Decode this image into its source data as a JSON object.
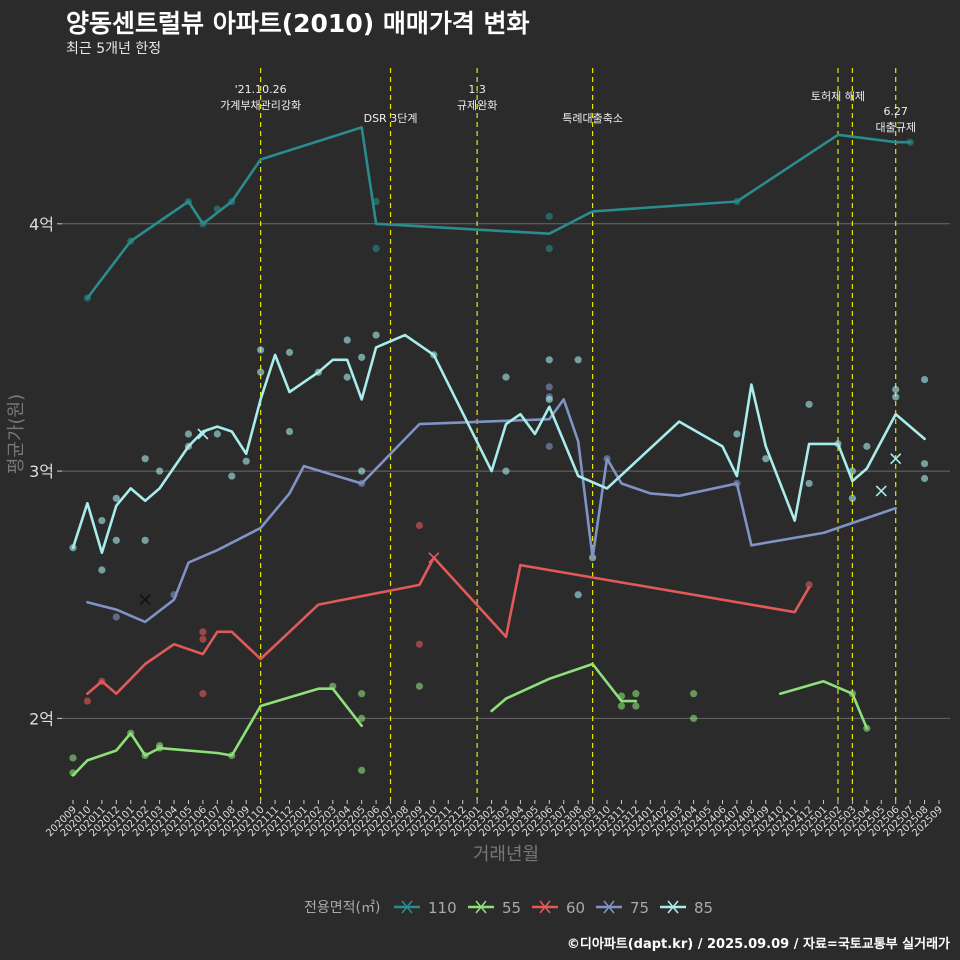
{
  "title": "양동센트럴뷰 아파트(2010) 매매가격 변화",
  "subtitle": "최근 5개년 한정",
  "footer": "©디아파트(dapt.kr) / 2025.09.09 / 자료=국토교통부 실거래가",
  "colors": {
    "background": "#2b2b2b",
    "grid": "#6a6a6a",
    "event_line": "#e6e600",
    "series": {
      "110": "#2a8c8c",
      "55": "#8ee07a",
      "60": "#e05a5a",
      "75": "#7f93c4",
      "85": "#a8ecec"
    }
  },
  "chart_data": {
    "type": "line",
    "ylabel": "평균가(원)",
    "xlabel": "거래년월",
    "ytick_labels": [
      "2억",
      "3억",
      "4억"
    ],
    "yticks": [
      20000,
      30000,
      40000
    ],
    "ylim": [
      16700,
      46300
    ],
    "x_ticks": [
      "202009",
      "202010",
      "202011",
      "202012",
      "202101",
      "202102",
      "202103",
      "202104",
      "202105",
      "202106",
      "202107",
      "202108",
      "202109",
      "202110",
      "202111",
      "202112",
      "202201",
      "202202",
      "202203",
      "202204",
      "202205",
      "202206",
      "202207",
      "202208",
      "202209",
      "202210",
      "202211",
      "202212",
      "202301",
      "202302",
      "202303",
      "202304",
      "202305",
      "202306",
      "202307",
      "202308",
      "202309",
      "202310",
      "202311",
      "202312",
      "202401",
      "202402",
      "202403",
      "202404",
      "202405",
      "202406",
      "202407",
      "202408",
      "202409",
      "202410",
      "202411",
      "202412",
      "202501",
      "202502",
      "202503",
      "202504",
      "202505",
      "202506",
      "202507",
      "202508",
      "202509"
    ],
    "legend_title": "전용면적(㎡)",
    "legend_position": "bottom",
    "events": [
      {
        "month": "202110",
        "label": "'21.10.26\n가계부채관리강화",
        "level": 0
      },
      {
        "month": "202207",
        "label": "DSR 3단계",
        "level": 2
      },
      {
        "month": "202301",
        "label": "1.3\n규제완화",
        "level": 0
      },
      {
        "month": "202309",
        "label": "특례대출축소",
        "level": 2
      },
      {
        "month": "202502",
        "label": "토허제 해제",
        "level": 1
      },
      {
        "month": "202503",
        "label": "",
        "level": 1
      },
      {
        "month": "202506",
        "label": "6.27\n대출규제",
        "level": 3
      }
    ],
    "series": [
      {
        "name": "110",
        "line": [
          [
            1,
            37000
          ],
          [
            4,
            39300
          ],
          [
            8,
            40900
          ],
          [
            9,
            40000
          ],
          [
            11,
            40900
          ],
          [
            13,
            42600
          ],
          [
            20,
            43900
          ],
          [
            21,
            40000
          ],
          [
            33,
            39600
          ],
          [
            36,
            40500
          ],
          [
            46,
            40900
          ],
          [
            53,
            43600
          ],
          [
            57,
            43300
          ],
          [
            58,
            43300
          ]
        ],
        "points": [
          [
            1,
            37000
          ],
          [
            4,
            39300
          ],
          [
            8,
            40900
          ],
          [
            9,
            40000
          ],
          [
            10,
            40600
          ],
          [
            11,
            40900
          ],
          [
            21,
            40900
          ],
          [
            21,
            39000
          ],
          [
            33,
            40300
          ],
          [
            33,
            39000
          ],
          [
            46,
            40900
          ],
          [
            58,
            43300
          ]
        ],
        "marker": null
      },
      {
        "name": "55",
        "line": [
          [
            0,
            17700
          ],
          [
            1,
            18300
          ],
          [
            3,
            18700
          ],
          [
            4,
            19400
          ],
          [
            5,
            18500
          ],
          [
            6,
            18800
          ],
          [
            10,
            18600
          ],
          [
            11,
            18500
          ],
          [
            13,
            20500
          ],
          [
            17,
            21200
          ],
          [
            18,
            21200
          ],
          [
            20,
            19700
          ]
        ],
        "line2": [
          [
            29,
            20300
          ],
          [
            30,
            20800
          ],
          [
            33,
            21600
          ],
          [
            36,
            22200
          ],
          [
            38,
            20700
          ],
          [
            39,
            20700
          ]
        ],
        "line3": [
          [
            49,
            21000
          ],
          [
            52,
            21500
          ],
          [
            54,
            21000
          ],
          [
            55,
            19600
          ]
        ],
        "points": [
          [
            0,
            18400
          ],
          [
            0,
            17800
          ],
          [
            4,
            19400
          ],
          [
            5,
            18500
          ],
          [
            6,
            18900
          ],
          [
            6,
            18800
          ],
          [
            11,
            18500
          ],
          [
            18,
            21300
          ],
          [
            20,
            21000
          ],
          [
            20,
            20000
          ],
          [
            20,
            17900
          ],
          [
            24,
            21300
          ],
          [
            38,
            20900
          ],
          [
            38,
            20500
          ],
          [
            39,
            21000
          ],
          [
            39,
            20500
          ],
          [
            43,
            21000
          ],
          [
            43,
            20000
          ],
          [
            54,
            21000
          ],
          [
            55,
            19600
          ]
        ],
        "marker": null
      },
      {
        "name": "60",
        "line": [
          [
            1,
            21000
          ],
          [
            2,
            21500
          ],
          [
            3,
            21000
          ],
          [
            5,
            22200
          ],
          [
            7,
            23000
          ],
          [
            9,
            22600
          ],
          [
            10,
            23500
          ],
          [
            11,
            23500
          ],
          [
            13,
            22400
          ],
          [
            17,
            24600
          ],
          [
            24,
            25400
          ],
          [
            25,
            26500
          ],
          [
            30,
            23300
          ],
          [
            31,
            26200
          ],
          [
            50,
            24300
          ],
          [
            51,
            25300
          ]
        ],
        "points": [
          [
            1,
            20700
          ],
          [
            2,
            21500
          ],
          [
            9,
            23500
          ],
          [
            9,
            23200
          ],
          [
            9,
            21000
          ],
          [
            24,
            27800
          ],
          [
            24,
            23000
          ],
          [
            51,
            25400
          ]
        ],
        "marker": [
          [
            25,
            26500
          ]
        ]
      },
      {
        "name": "75",
        "line": [
          [
            1,
            24700
          ],
          [
            3,
            24400
          ],
          [
            5,
            23900
          ],
          [
            7,
            24800
          ],
          [
            8,
            26300
          ],
          [
            10,
            26800
          ],
          [
            13,
            27700
          ],
          [
            15,
            29100
          ],
          [
            16,
            30200
          ],
          [
            20,
            29500
          ],
          [
            24,
            31900
          ],
          [
            33,
            32100
          ],
          [
            34,
            32900
          ],
          [
            35,
            31200
          ],
          [
            36,
            26500
          ],
          [
            37,
            30500
          ],
          [
            38,
            29500
          ],
          [
            40,
            29100
          ],
          [
            42,
            29000
          ],
          [
            46,
            29500
          ],
          [
            47,
            27000
          ],
          [
            52,
            27500
          ],
          [
            57,
            28500
          ]
        ],
        "points": [
          [
            3,
            24100
          ],
          [
            7,
            25000
          ],
          [
            20,
            29500
          ],
          [
            33,
            33400
          ],
          [
            33,
            33000
          ],
          [
            33,
            31000
          ],
          [
            37,
            30500
          ],
          [
            46,
            29500
          ]
        ],
        "marker": [
          [
            5,
            24800
          ]
        ]
      },
      {
        "name": "85",
        "line": [
          [
            0,
            26900
          ],
          [
            1,
            28700
          ],
          [
            2,
            26700
          ],
          [
            3,
            28600
          ],
          [
            4,
            29300
          ],
          [
            5,
            28800
          ],
          [
            6,
            29300
          ],
          [
            8,
            31000
          ],
          [
            9,
            31600
          ],
          [
            10,
            31800
          ],
          [
            11,
            31600
          ],
          [
            12,
            30700
          ],
          [
            13,
            32900
          ],
          [
            14,
            34700
          ],
          [
            15,
            33200
          ],
          [
            17,
            34000
          ],
          [
            18,
            34500
          ],
          [
            19,
            34500
          ],
          [
            20,
            32900
          ],
          [
            21,
            35000
          ],
          [
            23,
            35500
          ],
          [
            25,
            34700
          ],
          [
            29,
            30000
          ],
          [
            30,
            31900
          ],
          [
            31,
            32300
          ],
          [
            32,
            31500
          ],
          [
            33,
            32600
          ],
          [
            35,
            29800
          ],
          [
            37,
            29300
          ],
          [
            42,
            32000
          ],
          [
            45,
            31000
          ],
          [
            46,
            29800
          ],
          [
            47,
            33500
          ],
          [
            48,
            31000
          ],
          [
            50,
            28000
          ],
          [
            51,
            31100
          ],
          [
            53,
            31100
          ],
          [
            54,
            29600
          ],
          [
            55,
            30100
          ],
          [
            57,
            32300
          ],
          [
            59,
            31300
          ]
        ],
        "points": [
          [
            0,
            26900
          ],
          [
            2,
            28000
          ],
          [
            2,
            26000
          ],
          [
            3,
            28900
          ],
          [
            3,
            27200
          ],
          [
            5,
            30500
          ],
          [
            5,
            27200
          ],
          [
            6,
            30000
          ],
          [
            8,
            31500
          ],
          [
            8,
            31000
          ],
          [
            10,
            31500
          ],
          [
            11,
            29800
          ],
          [
            12,
            30400
          ],
          [
            13,
            34900
          ],
          [
            13,
            34000
          ],
          [
            15,
            31600
          ],
          [
            15,
            34800
          ],
          [
            17,
            34000
          ],
          [
            19,
            35300
          ],
          [
            19,
            33800
          ],
          [
            20,
            30000
          ],
          [
            20,
            34600
          ],
          [
            21,
            35500
          ],
          [
            25,
            34700
          ],
          [
            30,
            33800
          ],
          [
            30,
            30000
          ],
          [
            33,
            34500
          ],
          [
            33,
            32900
          ],
          [
            35,
            25000
          ],
          [
            35,
            34500
          ],
          [
            36,
            26500
          ],
          [
            46,
            31500
          ],
          [
            48,
            30500
          ],
          [
            51,
            32700
          ],
          [
            51,
            29500
          ],
          [
            53,
            31100
          ],
          [
            54,
            30000
          ],
          [
            54,
            28900
          ],
          [
            55,
            31000
          ],
          [
            57,
            33300
          ],
          [
            57,
            33000
          ],
          [
            59,
            33700
          ],
          [
            59,
            30300
          ],
          [
            59,
            29700
          ]
        ],
        "marker": [
          [
            9,
            31500
          ],
          [
            56,
            29200
          ],
          [
            57,
            30500
          ]
        ]
      }
    ]
  }
}
